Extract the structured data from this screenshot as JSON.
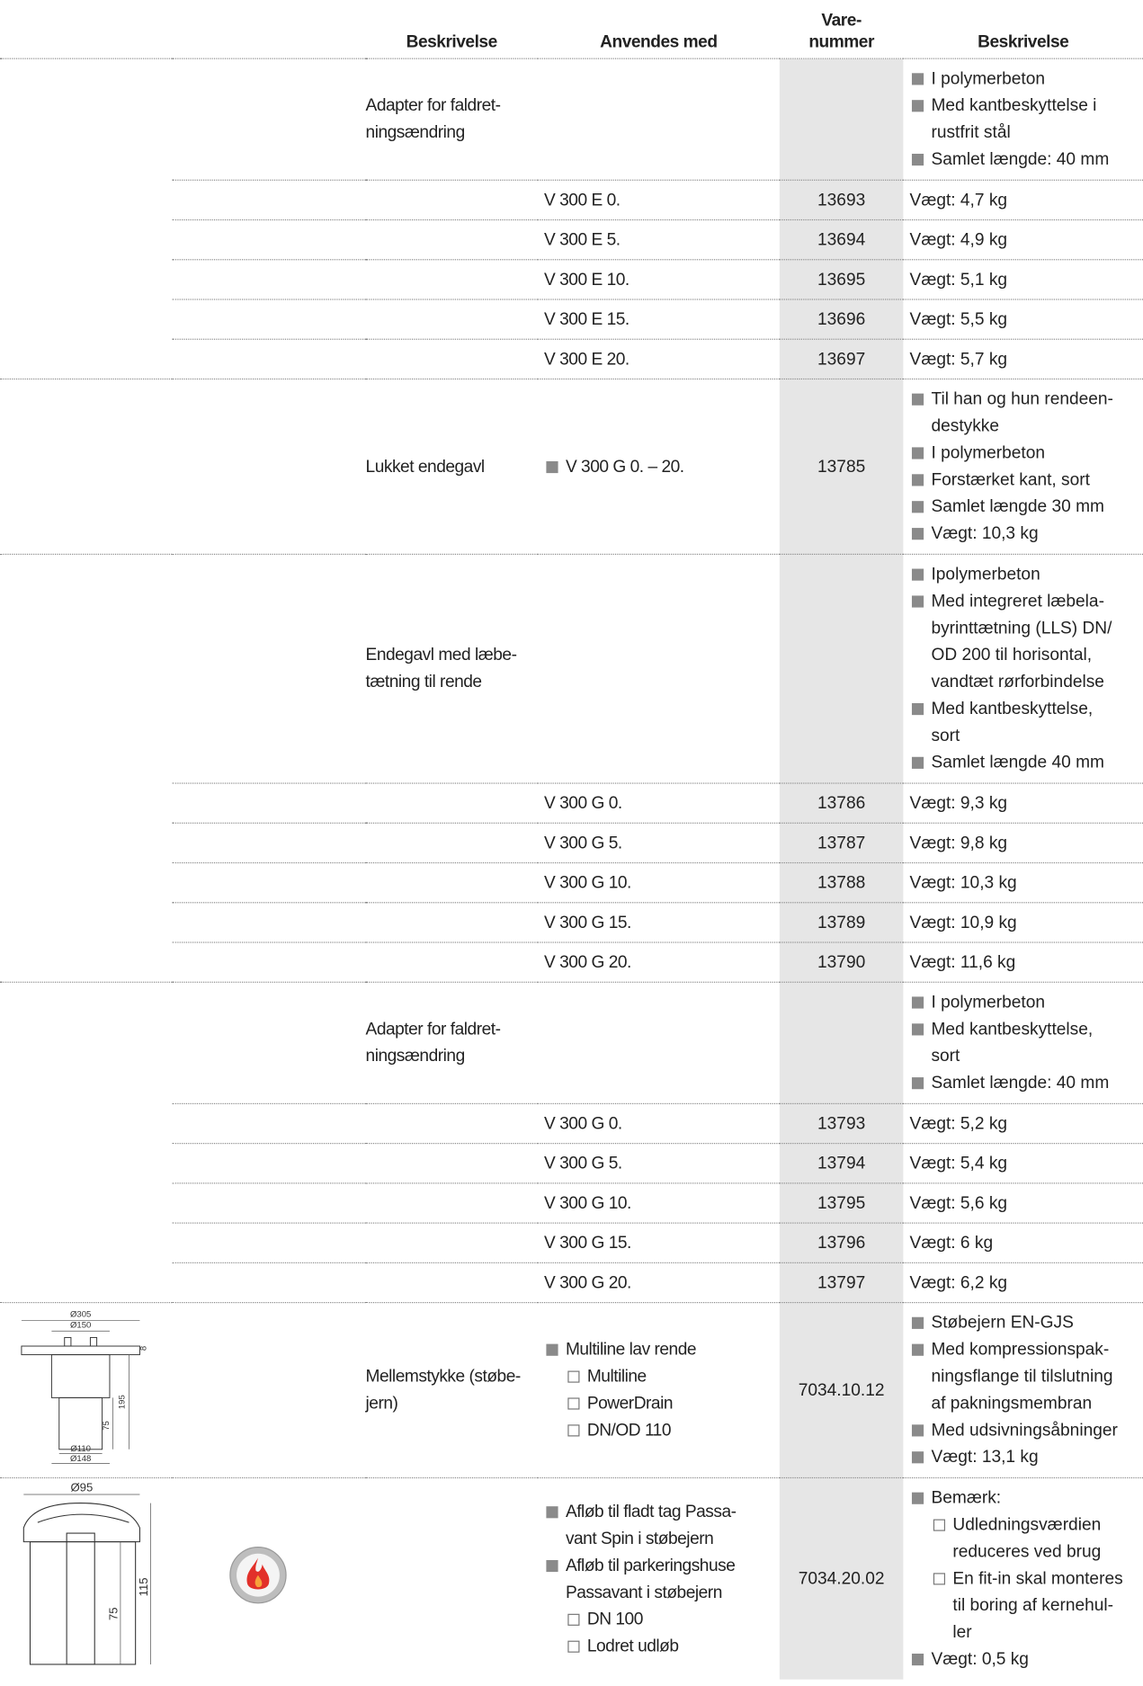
{
  "header": {
    "columns": [
      "Beskrivelse",
      "Anvendes med",
      "Vare-\nnummer",
      "Beskrivelse"
    ]
  },
  "rows": [
    {
      "description": "Adapter for faldret-\nningsændring",
      "details": [
        "I polymerbeton",
        "Med kantbeskyttelse i rustfrit stål",
        "Samlet længde: 40 mm"
      ]
    },
    {
      "used_with": "V 300 E 0.",
      "item_number": "13693",
      "note": "Vægt: 4,7 kg"
    },
    {
      "used_with": "V 300 E 5.",
      "item_number": "13694",
      "note": "Vægt: 4,9 kg"
    },
    {
      "used_with": "V 300 E 10.",
      "item_number": "13695",
      "note": "Vægt: 5,1 kg"
    },
    {
      "used_with": "V 300 E 15.",
      "item_number": "13696",
      "note": "Vægt: 5,5 kg"
    },
    {
      "used_with": "V 300 E 20.",
      "item_number": "13697",
      "note": "Vægt: 5,7 kg"
    },
    {
      "description": "Lukket endegavl",
      "used_with_list": [
        "V 300 G 0. – 20."
      ],
      "item_number": "13785",
      "details": [
        "Til han og hun rendeen-\ndestykke",
        "I polymerbeton",
        "Forstærket kant, sort",
        "Samlet længde 30 mm",
        "Vægt: 10,3 kg"
      ]
    },
    {
      "description": "Endegavl med læbe-\ntætning til rende",
      "details": [
        "Ipolymerbeton",
        "Med integreret læbela-\nbyrinttætning (LLS) DN/\nOD 200 til horisontal,\nvandtæt rørforbindelse",
        "Med kantbeskyttelse,\nsort",
        "Samlet længde 40 mm"
      ]
    },
    {
      "used_with": "V 300 G 0.",
      "item_number": "13786",
      "note": "Vægt: 9,3 kg"
    },
    {
      "used_with": "V 300 G 5.",
      "item_number": "13787",
      "note": "Vægt: 9,8 kg"
    },
    {
      "used_with": "V 300 G 10.",
      "item_number": "13788",
      "note": "Vægt: 10,3 kg"
    },
    {
      "used_with": "V 300 G 15.",
      "item_number": "13789",
      "note": "Vægt: 10,9 kg"
    },
    {
      "used_with": "V 300 G 20.",
      "item_number": "13790",
      "note": "Vægt: 11,6 kg"
    },
    {
      "description": "Adapter for faldret-\nningsændring",
      "details": [
        "I polymerbeton",
        "Med kantbeskyttelse,\nsort",
        "Samlet længde: 40 mm"
      ]
    },
    {
      "used_with": "V 300 G 0.",
      "item_number": "13793",
      "note": "Vægt: 5,2 kg"
    },
    {
      "used_with": "V 300 G 5.",
      "item_number": "13794",
      "note": "Vægt: 5,4 kg"
    },
    {
      "used_with": "V 300 G 10.",
      "item_number": "13795",
      "note": "Vægt: 5,6 kg"
    },
    {
      "used_with": "V 300 G 15.",
      "item_number": "13796",
      "note": "Vægt: 6 kg"
    },
    {
      "used_with": "V 300 G 20.",
      "item_number": "13797",
      "note": "Vægt: 6,2 kg"
    },
    {
      "description": "Mellemstykke (støbe-\njern)",
      "used_with_list": [
        {
          "text": "Multiline lav rende",
          "sub": [
            "Multiline",
            "PowerDrain",
            "DN/OD 110"
          ]
        }
      ],
      "item_number": "7034.10.12",
      "details": [
        "Støbejern EN-GJS",
        "Med kompressionspak-\nningsflange til tilslutning\naf pakningsmembran",
        "Med udsivningsåbninger",
        "Vægt: 13,1 kg"
      ],
      "drawing_labels": [
        "Ø305",
        "Ø150",
        "8",
        "195",
        "75",
        "Ø110",
        "Ø148"
      ]
    },
    {
      "used_with_list": [
        {
          "text": "Afløb til fladt tag Passa-\nvant Spin i støbejern"
        },
        {
          "text": "Afløb til parkeringshuse\nPassavant i støbejern",
          "sub": [
            "DN 100",
            "Lodret udløb"
          ]
        }
      ],
      "item_number": "7034.20.02",
      "details": [
        {
          "text": "Bemærk:",
          "sub": [
            "Udledningsværdien\nreduceres ved brug",
            "En fit-in skal monteres\ntil boring af kernehul-\nler"
          ]
        },
        "Vægt: 0,5 kg"
      ],
      "drawing_labels": [
        "Ø95",
        "115",
        "75"
      ]
    }
  ]
}
